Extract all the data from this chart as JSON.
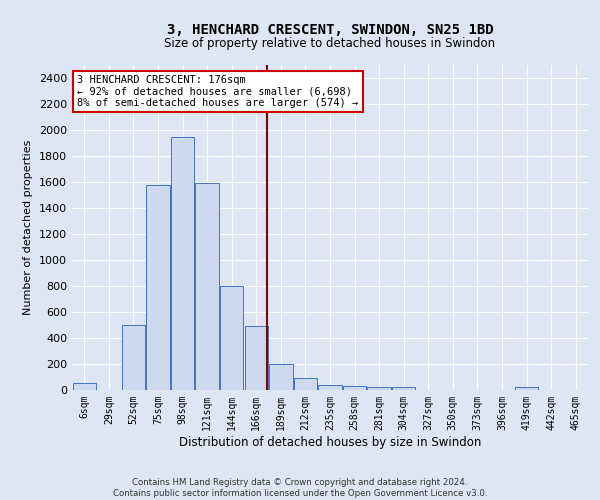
{
  "title": "3, HENCHARD CRESCENT, SWINDON, SN25 1BD",
  "subtitle": "Size of property relative to detached houses in Swindon",
  "xlabel": "Distribution of detached houses by size in Swindon",
  "ylabel": "Number of detached properties",
  "footer_line1": "Contains HM Land Registry data © Crown copyright and database right 2024.",
  "footer_line2": "Contains public sector information licensed under the Open Government Licence v3.0.",
  "annotation_title": "3 HENCHARD CRESCENT: 176sqm",
  "annotation_line1": "← 92% of detached houses are smaller (6,698)",
  "annotation_line2": "8% of semi-detached houses are larger (574) →",
  "bar_labels": [
    "6sqm",
    "29sqm",
    "52sqm",
    "75sqm",
    "98sqm",
    "121sqm",
    "144sqm",
    "166sqm",
    "189sqm",
    "212sqm",
    "235sqm",
    "258sqm",
    "281sqm",
    "304sqm",
    "327sqm",
    "350sqm",
    "373sqm",
    "396sqm",
    "419sqm",
    "442sqm",
    "465sqm"
  ],
  "bar_values": [
    55,
    0,
    500,
    1580,
    1950,
    1590,
    800,
    490,
    200,
    90,
    35,
    30,
    25,
    20,
    0,
    0,
    0,
    0,
    20,
    0,
    0
  ],
  "bar_color": "#ccd9ee",
  "bar_edge_color": "#4472c4",
  "vline_color": "#8b0000",
  "ylim": [
    0,
    2500
  ],
  "yticks": [
    0,
    200,
    400,
    600,
    800,
    1000,
    1200,
    1400,
    1600,
    1800,
    2000,
    2200,
    2400
  ],
  "bg_color": "#dce6f5",
  "plot_bg_color": "#dce6f5",
  "grid_color": "#ffffff",
  "annotation_box_color": "#ffffff",
  "annotation_box_edge": "#cc0000"
}
